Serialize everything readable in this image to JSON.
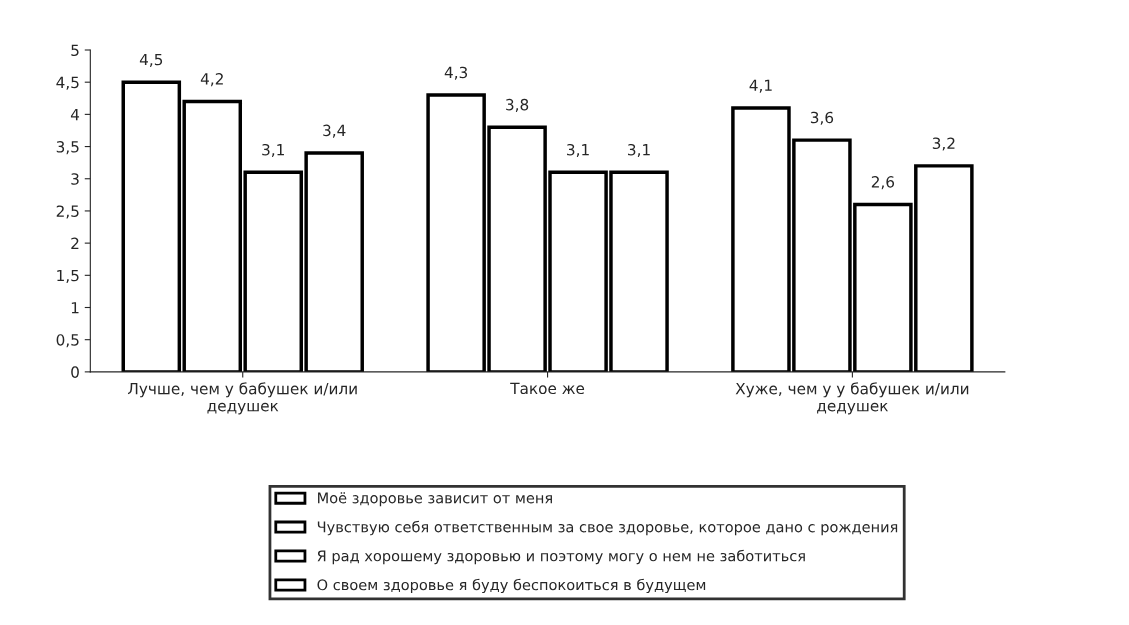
{
  "chart_data": {
    "type": "bar",
    "categories": [
      "Лучше, чем у бабушек и/или\nдедушек",
      "Такое же",
      "Хуже, чем у у бабушек и/или\nдедушек"
    ],
    "series": [
      {
        "name": "Моё здоровье зависит от меня",
        "color": "#ffffff",
        "values": [
          4.5,
          4.3,
          4.1
        ],
        "value_labels": [
          "4,5",
          "4,3",
          "4,1"
        ]
      },
      {
        "name": "Чувствую себя ответственным за свое здоровье, которое дано с рождения",
        "color": "#ffffff",
        "values": [
          4.2,
          3.8,
          3.6
        ],
        "value_labels": [
          "4,2",
          "3,8",
          "3,6"
        ]
      },
      {
        "name": "Я рад хорошему здоровью и поэтому могу о нем не заботиться",
        "color": "#ffffff",
        "values": [
          3.1,
          3.1,
          2.6
        ],
        "value_labels": [
          "3,1",
          "3,1",
          "2,6"
        ]
      },
      {
        "name": "О своем здоровье я буду беспокоиться в будущем",
        "color": "#ffffff",
        "values": [
          3.4,
          3.1,
          3.2
        ],
        "value_labels": [
          "3,4",
          "3,1",
          "3,2"
        ]
      }
    ],
    "ylim": [
      0,
      5
    ],
    "yticks": [
      0,
      {
        "value": 0.5,
        "label": "0,5"
      },
      1,
      {
        "value": 1.5,
        "label": "1,5"
      },
      2,
      {
        "value": 2.5,
        "label": "2,5"
      },
      3,
      {
        "value": 3.5,
        "label": "3,5"
      },
      4,
      {
        "value": 4.5,
        "label": "4,5"
      },
      5
    ],
    "grid": false,
    "legend": "bottom"
  }
}
